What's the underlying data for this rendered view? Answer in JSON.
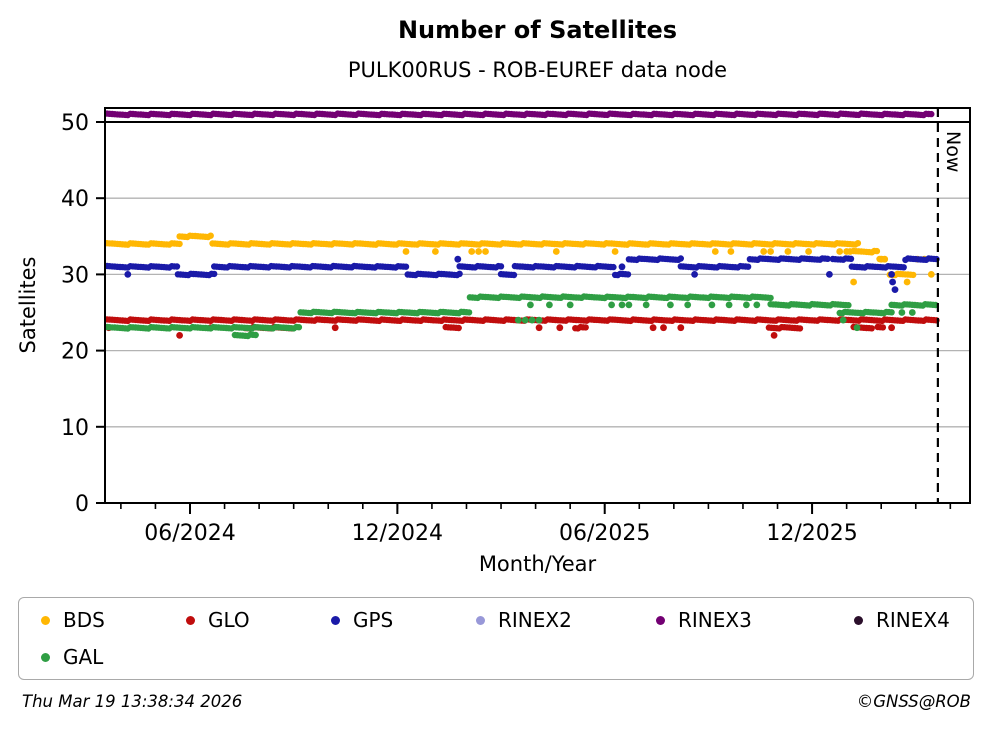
{
  "title": "Number of Satellites",
  "subtitle": "PULK00RUS - ROB-EUREF data node",
  "now_label": "Now",
  "footer": {
    "timestamp": "Thu Mar 19 13:38:34 2026",
    "credit": "©GNSS@ROB"
  },
  "chart_data": {
    "type": "scatter",
    "title": "Number of Satellites",
    "subtitle": "PULK00RUS - ROB-EUREF data node",
    "xlabel": "Month/Year",
    "ylabel": "Satellites",
    "ylim": [
      0,
      51.84
    ],
    "yticks": [
      0,
      10,
      20,
      30,
      40,
      50
    ],
    "grid": true,
    "grid_color": "#b3b3b3",
    "rule_y": 50,
    "t_range": [
      -2.46,
      22.55
    ],
    "now_t": 21.64,
    "x_major_ticks": [
      {
        "t": 0,
        "label": "06/2024"
      },
      {
        "t": 6,
        "label": "12/2024"
      },
      {
        "t": 12,
        "label": "06/2025"
      },
      {
        "t": 18,
        "label": "12/2025"
      }
    ],
    "x_minor_step_months": 1,
    "legend_position": "bottom",
    "series": [
      {
        "name": "RINEX3",
        "color": "#730073",
        "segments": [
          [
            -2.4,
            21.5,
            51
          ]
        ],
        "dots": []
      },
      {
        "name": "BDS",
        "color": "#FFB703",
        "segments": [
          [
            -2.4,
            -0.3,
            34
          ],
          [
            -0.3,
            0.65,
            35
          ],
          [
            0.65,
            19.35,
            34
          ],
          [
            19.2,
            19.9,
            33
          ],
          [
            19.95,
            20.15,
            32
          ],
          [
            20.25,
            20.95,
            30
          ]
        ],
        "dots": [
          [
            6.25,
            33
          ],
          [
            7.1,
            33
          ],
          [
            8.15,
            33
          ],
          [
            8.35,
            33
          ],
          [
            8.55,
            33
          ],
          [
            10.6,
            33
          ],
          [
            12.3,
            33
          ],
          [
            15.2,
            33
          ],
          [
            15.65,
            33
          ],
          [
            16.6,
            33
          ],
          [
            16.8,
            33
          ],
          [
            17.3,
            33
          ],
          [
            17.9,
            33
          ],
          [
            18.8,
            33
          ],
          [
            19.0,
            33
          ],
          [
            19.1,
            33
          ],
          [
            20.0,
            32
          ],
          [
            20.1,
            32
          ],
          [
            21.05,
            32
          ],
          [
            21.25,
            32
          ],
          [
            21.45,
            30
          ],
          [
            19.2,
            29
          ],
          [
            20.75,
            29
          ]
        ]
      },
      {
        "name": "GPS",
        "color": "#1A1AA8",
        "segments": [
          [
            -2.4,
            -0.35,
            31
          ],
          [
            -0.35,
            0.7,
            30
          ],
          [
            0.7,
            6.3,
            31
          ],
          [
            6.3,
            7.8,
            30
          ],
          [
            7.8,
            9.0,
            31
          ],
          [
            9.0,
            9.4,
            30
          ],
          [
            9.4,
            12.3,
            31
          ],
          [
            12.3,
            12.7,
            30
          ],
          [
            12.7,
            14.2,
            32
          ],
          [
            14.2,
            16.2,
            31
          ],
          [
            16.2,
            18.45,
            32
          ],
          [
            18.6,
            19.15,
            32
          ],
          [
            19.15,
            20.7,
            31
          ],
          [
            20.7,
            21.64,
            32
          ]
        ],
        "dots": [
          [
            -1.8,
            30
          ],
          [
            7.75,
            32
          ],
          [
            12.5,
            31
          ],
          [
            14.6,
            30
          ],
          [
            18.5,
            30
          ],
          [
            20.3,
            30
          ],
          [
            20.33,
            29
          ],
          [
            20.4,
            28
          ]
        ]
      },
      {
        "name": "GLO",
        "color": "#C00D0D",
        "segments": [
          [
            -2.4,
            21.64,
            24
          ],
          [
            1.6,
            3.0,
            23
          ],
          [
            7.4,
            7.8,
            23
          ],
          [
            11.15,
            11.45,
            23
          ],
          [
            16.75,
            17.65,
            23
          ],
          [
            19.2,
            19.75,
            23
          ],
          [
            19.9,
            20.1,
            23
          ]
        ],
        "dots": [
          [
            -2.35,
            23
          ],
          [
            0.6,
            23
          ],
          [
            4.2,
            23
          ],
          [
            -0.3,
            22
          ],
          [
            10.1,
            23
          ],
          [
            10.7,
            23
          ],
          [
            13.4,
            23
          ],
          [
            13.7,
            23
          ],
          [
            14.2,
            23
          ],
          [
            16.9,
            22
          ],
          [
            20.3,
            23
          ]
        ]
      },
      {
        "name": "GAL",
        "color": "#2F9E44",
        "segments": [
          [
            -2.4,
            3.2,
            23
          ],
          [
            1.3,
            1.9,
            22
          ],
          [
            3.2,
            8.1,
            25
          ],
          [
            8.1,
            16.8,
            27
          ],
          [
            16.8,
            19.05,
            26
          ],
          [
            18.8,
            20.3,
            25
          ],
          [
            20.3,
            21.64,
            26
          ]
        ],
        "dots": [
          [
            9.5,
            24
          ],
          [
            9.7,
            24
          ],
          [
            9.9,
            24
          ],
          [
            10.1,
            24
          ],
          [
            9.85,
            26
          ],
          [
            10.4,
            26
          ],
          [
            11.0,
            26
          ],
          [
            12.2,
            26
          ],
          [
            12.5,
            26
          ],
          [
            12.7,
            26
          ],
          [
            13.2,
            26
          ],
          [
            13.9,
            26
          ],
          [
            14.4,
            26
          ],
          [
            15.1,
            26
          ],
          [
            15.6,
            26
          ],
          [
            16.1,
            26
          ],
          [
            16.4,
            26
          ],
          [
            18.9,
            24
          ],
          [
            19.3,
            23
          ],
          [
            20.6,
            25
          ],
          [
            20.9,
            25
          ]
        ]
      },
      {
        "name": "RINEX2",
        "color": "#9898D8",
        "segments": [],
        "dots": []
      },
      {
        "name": "RINEX4",
        "color": "#2B0F2B",
        "segments": [],
        "dots": []
      }
    ],
    "legend": [
      {
        "label": "BDS",
        "color": "#FFB703",
        "col": 0,
        "row": 0
      },
      {
        "label": "GLO",
        "color": "#C00D0D",
        "col": 1,
        "row": 0
      },
      {
        "label": "GPS",
        "color": "#1A1AA8",
        "col": 2,
        "row": 0
      },
      {
        "label": "RINEX2",
        "color": "#9898D8",
        "col": 3,
        "row": 0
      },
      {
        "label": "RINEX3",
        "color": "#730073",
        "col": 4,
        "row": 0
      },
      {
        "label": "RINEX4",
        "color": "#2B0F2B",
        "col": 5,
        "row": 0
      },
      {
        "label": "GAL",
        "color": "#2F9E44",
        "col": 0,
        "row": 1
      }
    ]
  }
}
